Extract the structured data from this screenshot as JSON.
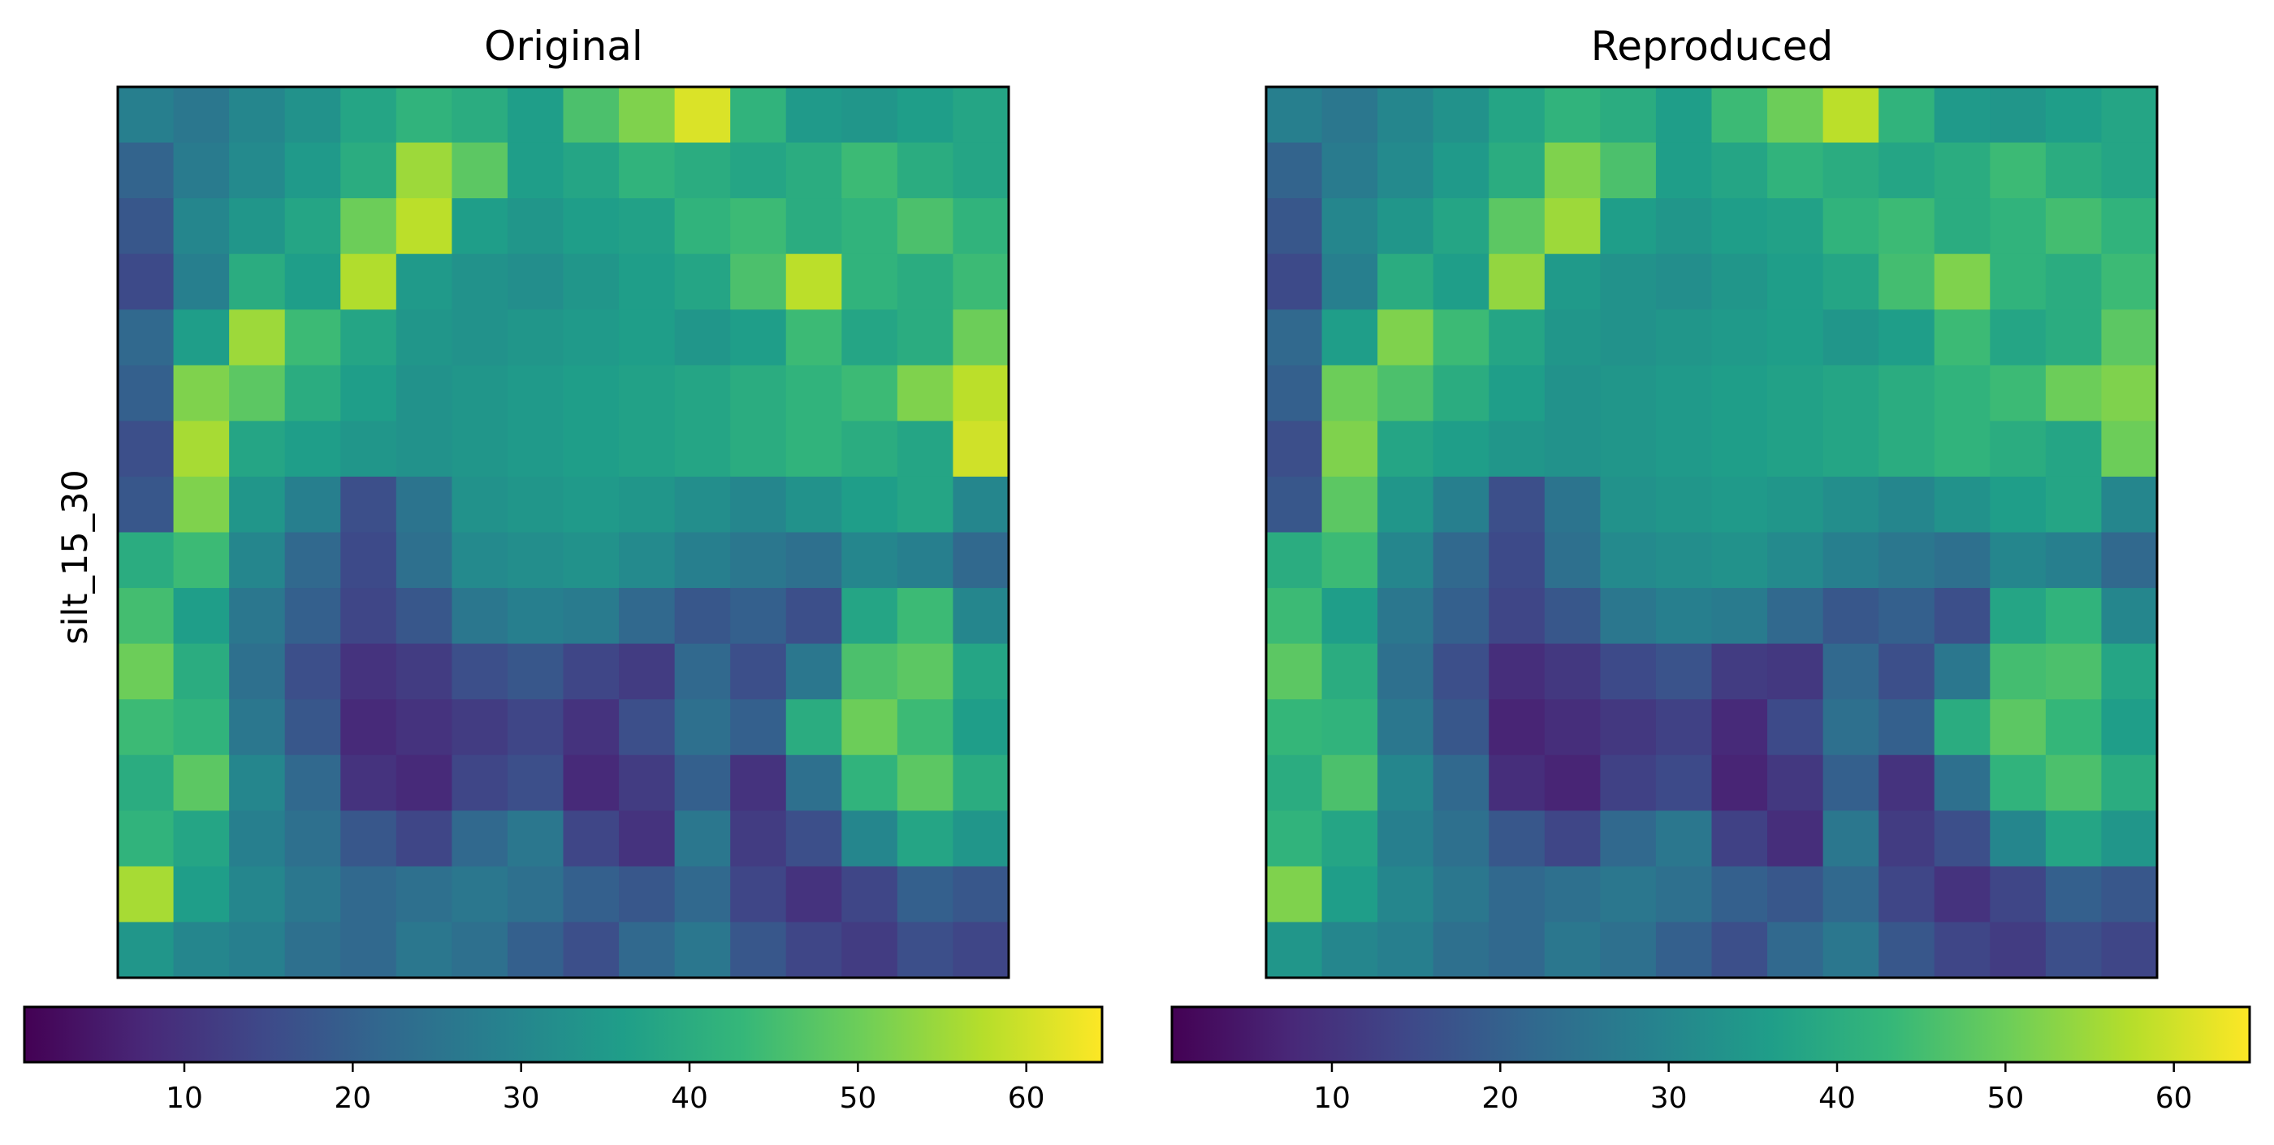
{
  "figure": {
    "ylabel": "silt_15_30",
    "colormap": "viridis",
    "colormap_stops": [
      "#440154",
      "#482878",
      "#3e4989",
      "#31688e",
      "#26828e",
      "#1f9e89",
      "#35b779",
      "#6ece58",
      "#b5de2b",
      "#fde725"
    ]
  },
  "chart_data": [
    {
      "type": "heatmap",
      "title": "Original",
      "ylabel": "silt_15_30",
      "colorbar": {
        "orientation": "horizontal",
        "range": [
          0.5,
          64.5
        ],
        "ticks": [
          10,
          20,
          30,
          40,
          50,
          60
        ]
      },
      "axes_ticks": "none",
      "image_shape": [
        16,
        16
      ],
      "values": [
        [
          28,
          26,
          30,
          33,
          38,
          42,
          40,
          36,
          46,
          52,
          61,
          42,
          35,
          34,
          36,
          38
        ],
        [
          21,
          27,
          31,
          35,
          40,
          55,
          48,
          36,
          38,
          42,
          40,
          38,
          40,
          44,
          40,
          38
        ],
        [
          18,
          30,
          34,
          38,
          50,
          58,
          36,
          34,
          36,
          37,
          42,
          44,
          40,
          42,
          46,
          42
        ],
        [
          15,
          28,
          40,
          36,
          57,
          35,
          33,
          32,
          34,
          36,
          38,
          46,
          58,
          42,
          40,
          44
        ],
        [
          22,
          36,
          55,
          44,
          38,
          34,
          33,
          34,
          35,
          36,
          34,
          36,
          44,
          38,
          40,
          50
        ],
        [
          20,
          52,
          48,
          40,
          36,
          33,
          34,
          35,
          36,
          37,
          38,
          40,
          42,
          44,
          52,
          58
        ],
        [
          16,
          56,
          38,
          36,
          34,
          33,
          34,
          35,
          36,
          37,
          38,
          40,
          42,
          40,
          38,
          60
        ],
        [
          18,
          52,
          34,
          28,
          16,
          25,
          33,
          34,
          35,
          34,
          32,
          30,
          33,
          36,
          38,
          30
        ],
        [
          40,
          44,
          30,
          22,
          15,
          24,
          31,
          32,
          33,
          31,
          28,
          26,
          24,
          30,
          28,
          22
        ],
        [
          45,
          36,
          26,
          20,
          14,
          18,
          26,
          28,
          27,
          22,
          18,
          20,
          16,
          38,
          44,
          30
        ],
        [
          50,
          40,
          24,
          16,
          10,
          12,
          16,
          18,
          14,
          12,
          22,
          16,
          26,
          46,
          48,
          38
        ],
        [
          44,
          42,
          26,
          18,
          8,
          10,
          12,
          14,
          10,
          16,
          24,
          20,
          40,
          50,
          44,
          36
        ],
        [
          40,
          48,
          30,
          22,
          10,
          8,
          14,
          16,
          8,
          12,
          20,
          10,
          24,
          42,
          48,
          40
        ],
        [
          42,
          38,
          28,
          24,
          18,
          14,
          22,
          26,
          14,
          10,
          26,
          12,
          16,
          30,
          38,
          34
        ],
        [
          56,
          36,
          30,
          26,
          22,
          24,
          26,
          24,
          20,
          18,
          22,
          14,
          10,
          14,
          20,
          18
        ],
        [
          34,
          30,
          28,
          24,
          22,
          26,
          24,
          20,
          16,
          22,
          26,
          18,
          14,
          12,
          16,
          14
        ]
      ]
    },
    {
      "type": "heatmap",
      "title": "Reproduced",
      "ylabel": "",
      "colorbar": {
        "orientation": "horizontal",
        "range": [
          0.5,
          64.5
        ],
        "ticks": [
          10,
          20,
          30,
          40,
          50,
          60
        ]
      },
      "axes_ticks": "none",
      "image_shape": [
        16,
        16
      ],
      "values": [
        [
          28,
          26,
          30,
          33,
          38,
          42,
          40,
          36,
          44,
          50,
          58,
          42,
          35,
          34,
          36,
          38
        ],
        [
          21,
          27,
          31,
          35,
          40,
          52,
          46,
          36,
          38,
          42,
          40,
          38,
          40,
          44,
          40,
          38
        ],
        [
          18,
          30,
          34,
          38,
          48,
          55,
          36,
          34,
          36,
          37,
          42,
          44,
          40,
          42,
          45,
          42
        ],
        [
          15,
          28,
          40,
          36,
          54,
          35,
          33,
          32,
          34,
          36,
          38,
          45,
          52,
          42,
          40,
          44
        ],
        [
          22,
          36,
          52,
          44,
          38,
          34,
          33,
          34,
          35,
          36,
          34,
          36,
          44,
          38,
          40,
          48
        ],
        [
          20,
          50,
          46,
          40,
          36,
          33,
          34,
          35,
          36,
          37,
          38,
          40,
          42,
          44,
          50,
          52
        ],
        [
          16,
          52,
          38,
          36,
          34,
          33,
          34,
          35,
          36,
          37,
          38,
          40,
          42,
          40,
          38,
          50
        ],
        [
          18,
          48,
          34,
          28,
          16,
          25,
          33,
          34,
          35,
          34,
          32,
          30,
          33,
          36,
          38,
          30
        ],
        [
          40,
          44,
          30,
          22,
          15,
          24,
          31,
          32,
          33,
          31,
          28,
          26,
          24,
          30,
          28,
          22
        ],
        [
          44,
          36,
          26,
          20,
          14,
          18,
          26,
          28,
          27,
          22,
          18,
          20,
          16,
          38,
          42,
          30
        ],
        [
          48,
          40,
          24,
          16,
          9,
          11,
          15,
          17,
          12,
          11,
          22,
          16,
          26,
          45,
          46,
          38
        ],
        [
          43,
          42,
          26,
          18,
          7,
          9,
          11,
          13,
          8,
          15,
          24,
          20,
          40,
          48,
          43,
          36
        ],
        [
          40,
          46,
          30,
          22,
          9,
          7,
          13,
          15,
          7,
          11,
          20,
          10,
          24,
          42,
          46,
          40
        ],
        [
          42,
          38,
          28,
          24,
          18,
          14,
          22,
          26,
          13,
          9,
          26,
          12,
          16,
          30,
          38,
          34
        ],
        [
          52,
          36,
          30,
          26,
          22,
          24,
          26,
          24,
          20,
          18,
          22,
          14,
          10,
          14,
          20,
          18
        ],
        [
          34,
          30,
          28,
          24,
          22,
          26,
          24,
          20,
          16,
          22,
          26,
          18,
          14,
          12,
          16,
          14
        ]
      ]
    }
  ]
}
